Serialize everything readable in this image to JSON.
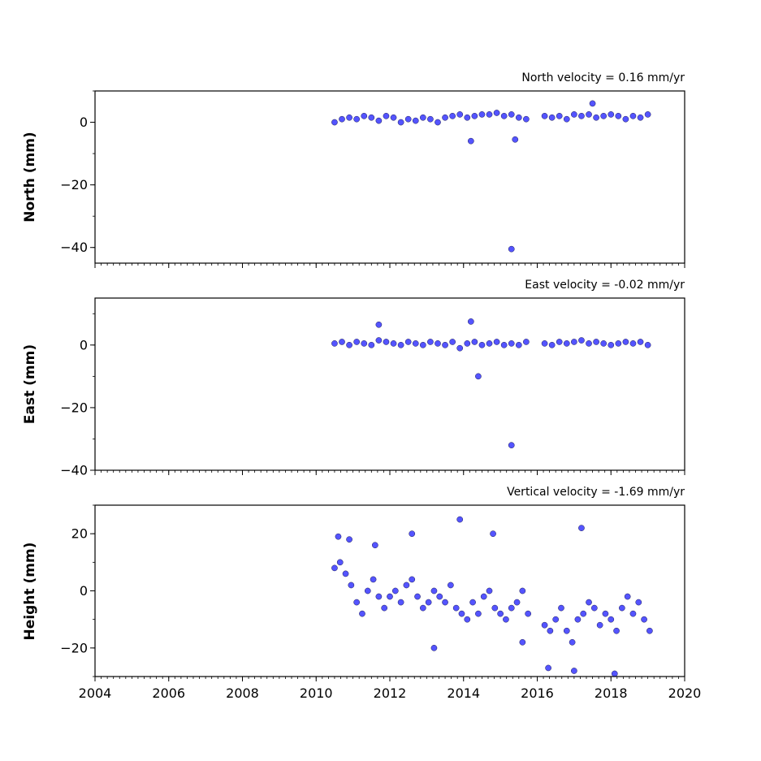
{
  "chart_data": [
    {
      "type": "scatter",
      "title": "North velocity = 0.16 mm/yr",
      "ylabel": "North (mm)",
      "xlim": [
        2004,
        2020
      ],
      "ylim": [
        -45,
        10
      ],
      "yticks": [
        0,
        -20,
        -40
      ],
      "ytick_labels": [
        "0",
        "−20",
        "−40"
      ],
      "xticks": [
        2004,
        2006,
        2008,
        2010,
        2012,
        2014,
        2016,
        2018,
        2020
      ],
      "xtick_labels": [],
      "grid": false,
      "series": [
        {
          "color": "#4b4bff",
          "x": [
            2010.5,
            2010.7,
            2010.9,
            2011.1,
            2011.3,
            2011.5,
            2011.7,
            2011.9,
            2012.1,
            2012.3,
            2012.5,
            2012.7,
            2012.9,
            2013.1,
            2013.3,
            2013.5,
            2013.7,
            2013.9,
            2014.1,
            2014.3,
            2014.5,
            2014.7,
            2014.9,
            2015.1,
            2015.3,
            2015.5,
            2015.7,
            2016.2,
            2016.4,
            2016.6,
            2016.8,
            2017.0,
            2017.2,
            2017.4,
            2017.6,
            2017.8,
            2018.0,
            2018.2,
            2018.4,
            2018.6,
            2018.8,
            2019.0,
            2014.2,
            2015.4,
            2015.3,
            2017.5
          ],
          "y": [
            0.0,
            1.0,
            1.5,
            1.0,
            2.0,
            1.5,
            0.5,
            2.0,
            1.5,
            0.0,
            1.0,
            0.5,
            1.5,
            1.0,
            0.0,
            1.5,
            2.0,
            2.5,
            1.5,
            2.0,
            2.5,
            2.5,
            3.0,
            2.0,
            2.5,
            1.5,
            1.0,
            2.0,
            1.5,
            2.0,
            1.0,
            2.5,
            2.0,
            2.5,
            1.5,
            2.0,
            2.5,
            2.0,
            1.0,
            2.0,
            1.5,
            2.5,
            -6.0,
            -5.5,
            -40.5,
            6.0
          ]
        }
      ]
    },
    {
      "type": "scatter",
      "title": "East velocity = -0.02 mm/yr",
      "ylabel": "East (mm)",
      "xlim": [
        2004,
        2020
      ],
      "ylim": [
        -40,
        15
      ],
      "yticks": [
        0,
        -20,
        -40
      ],
      "ytick_labels": [
        "0",
        "−20",
        "−40"
      ],
      "xticks": [
        2004,
        2006,
        2008,
        2010,
        2012,
        2014,
        2016,
        2018,
        2020
      ],
      "xtick_labels": [],
      "grid": false,
      "series": [
        {
          "color": "#4b4bff",
          "x": [
            2010.5,
            2010.7,
            2010.9,
            2011.1,
            2011.3,
            2011.5,
            2011.7,
            2011.9,
            2012.1,
            2012.3,
            2012.5,
            2012.7,
            2012.9,
            2013.1,
            2013.3,
            2013.5,
            2013.7,
            2013.9,
            2014.1,
            2014.3,
            2014.5,
            2014.7,
            2014.9,
            2015.1,
            2015.3,
            2015.5,
            2015.7,
            2016.2,
            2016.4,
            2016.6,
            2016.8,
            2017.0,
            2017.2,
            2017.4,
            2017.6,
            2017.8,
            2018.0,
            2018.2,
            2018.4,
            2018.6,
            2018.8,
            2019.0,
            2011.7,
            2014.2,
            2014.4,
            2015.3
          ],
          "y": [
            0.5,
            1.0,
            0.0,
            1.0,
            0.5,
            0.0,
            1.5,
            1.0,
            0.5,
            0.0,
            1.0,
            0.5,
            0.0,
            1.0,
            0.5,
            0.0,
            1.0,
            -1.0,
            0.5,
            1.0,
            0.0,
            0.5,
            1.0,
            0.0,
            0.5,
            0.0,
            1.0,
            0.5,
            0.0,
            1.0,
            0.5,
            1.0,
            1.5,
            0.5,
            1.0,
            0.5,
            0.0,
            0.5,
            1.0,
            0.5,
            1.0,
            0.0,
            6.5,
            7.5,
            -10.0,
            -32.0
          ]
        }
      ]
    },
    {
      "type": "scatter",
      "title": "Vertical velocity = -1.69 mm/yr",
      "ylabel": "Height (mm)",
      "xlim": [
        2004,
        2020
      ],
      "ylim": [
        -30,
        30
      ],
      "yticks": [
        20,
        0,
        -20
      ],
      "ytick_labels": [
        "20",
        "0",
        "−20"
      ],
      "xticks": [
        2004,
        2006,
        2008,
        2010,
        2012,
        2014,
        2016,
        2018,
        2020
      ],
      "xtick_labels": [
        "2004",
        "2006",
        "2008",
        "2010",
        "2012",
        "2014",
        "2016",
        "2018",
        "2020"
      ],
      "grid": false,
      "series": [
        {
          "color": "#4b4bff",
          "x": [
            2010.5,
            2010.65,
            2010.8,
            2010.95,
            2011.1,
            2011.25,
            2011.4,
            2011.55,
            2011.7,
            2011.85,
            2012.0,
            2012.15,
            2012.3,
            2012.45,
            2012.6,
            2012.75,
            2012.9,
            2013.05,
            2013.2,
            2013.35,
            2013.5,
            2013.65,
            2013.8,
            2013.95,
            2014.1,
            2014.25,
            2014.4,
            2014.55,
            2014.7,
            2014.85,
            2015.0,
            2015.15,
            2015.3,
            2015.45,
            2015.6,
            2015.75,
            2016.2,
            2016.35,
            2016.5,
            2016.65,
            2016.8,
            2016.95,
            2017.1,
            2017.25,
            2017.4,
            2017.55,
            2017.7,
            2017.85,
            2018.0,
            2018.15,
            2018.3,
            2018.45,
            2018.6,
            2018.75,
            2018.9,
            2019.05,
            2010.6,
            2010.9,
            2011.6,
            2012.6,
            2013.9,
            2014.8,
            2017.2,
            2013.2,
            2015.6,
            2016.3,
            2017.0,
            2018.1
          ],
          "y": [
            8.0,
            10.0,
            6.0,
            2.0,
            -4.0,
            -8.0,
            0.0,
            4.0,
            -2.0,
            -6.0,
            -2.0,
            0.0,
            -4.0,
            2.0,
            4.0,
            -2.0,
            -6.0,
            -4.0,
            0.0,
            -2.0,
            -4.0,
            2.0,
            -6.0,
            -8.0,
            -10.0,
            -4.0,
            -8.0,
            -2.0,
            0.0,
            -6.0,
            -8.0,
            -10.0,
            -6.0,
            -4.0,
            0.0,
            -8.0,
            -12.0,
            -14.0,
            -10.0,
            -6.0,
            -14.0,
            -18.0,
            -10.0,
            -8.0,
            -4.0,
            -6.0,
            -12.0,
            -8.0,
            -10.0,
            -14.0,
            -6.0,
            -2.0,
            -8.0,
            -4.0,
            -10.0,
            -14.0,
            19.0,
            18.0,
            16.0,
            20.0,
            25.0,
            20.0,
            22.0,
            -20.0,
            -18.0,
            -27.0,
            -28.0,
            -29.0
          ]
        }
      ]
    }
  ]
}
